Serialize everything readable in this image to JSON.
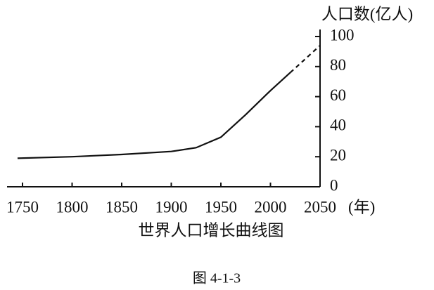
{
  "chart_data": {
    "type": "line",
    "y_label": "人口数(亿人)",
    "x_label": "(年)",
    "title": "世界人口增长曲线图",
    "caption": "图 4-1-3",
    "x": [
      1745,
      1800,
      1850,
      1900,
      1925,
      1950,
      1975,
      2000,
      2020,
      2050
    ],
    "series": [
      {
        "color": "#111111",
        "dashed": false,
        "values": [
          19,
          20,
          21.5,
          23.5,
          26,
          33,
          48,
          64,
          76,
          null
        ]
      },
      {
        "color": "#111111",
        "dashed": true,
        "values": [
          null,
          null,
          null,
          null,
          null,
          null,
          null,
          null,
          76,
          94
        ]
      }
    ],
    "xlim": [
      1750,
      2050
    ],
    "xticks": [
      1750,
      1800,
      1850,
      1900,
      1950,
      2000,
      2050
    ],
    "ylim": [
      0,
      100
    ],
    "yticks": [
      0,
      20,
      40,
      60,
      80,
      100
    ],
    "y_axis_side": "right",
    "grid": false
  }
}
